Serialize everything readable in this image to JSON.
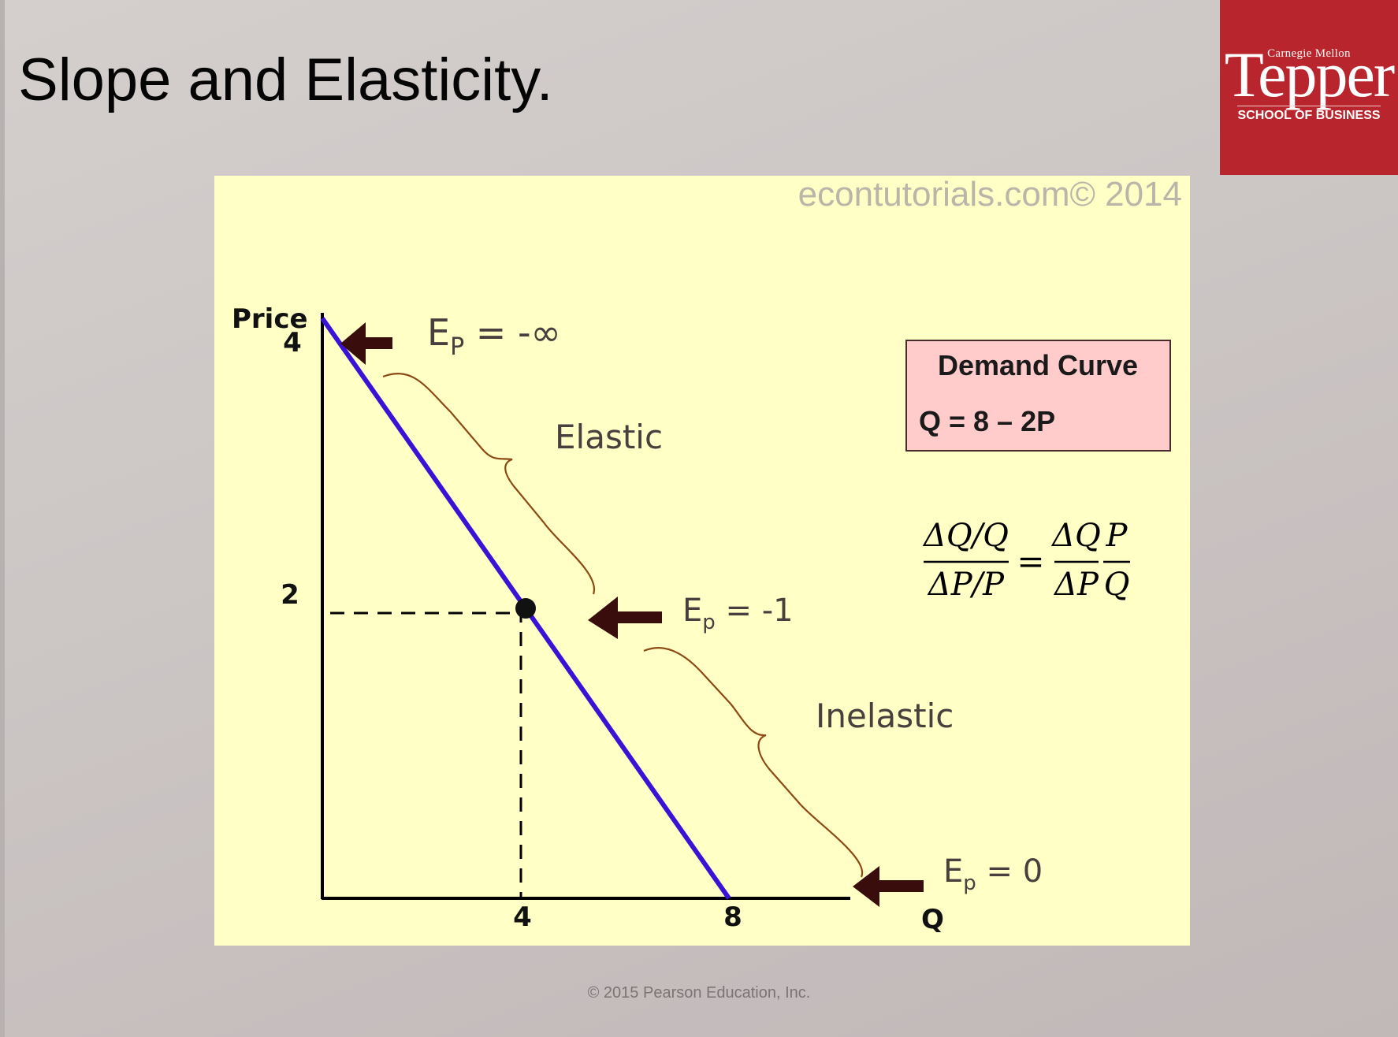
{
  "slide": {
    "title": "Slope and Elasticity.",
    "footer": "© 2015 Pearson Education, Inc."
  },
  "logo": {
    "top": "Carnegie Mellon",
    "main": "Tepper",
    "sub": "SCHOOL OF BUSINESS",
    "color": "#b8252c"
  },
  "chart_data": {
    "type": "line",
    "watermark": "econtutorials.com© 2014",
    "ylabel": "Price",
    "xlabel": "Q",
    "xlim": [
      0,
      8
    ],
    "ylim": [
      0,
      4
    ],
    "x_ticks": [
      4,
      8
    ],
    "y_ticks": [
      4,
      2
    ],
    "series": [
      {
        "points": [
          [
            0,
            4
          ],
          [
            8,
            0
          ]
        ],
        "color": "#3a12d6"
      }
    ],
    "marked_point": {
      "x": 4,
      "y": 2
    },
    "annotations": {
      "ep_top": {
        "lead": "E",
        "sub": "P",
        "rest": " = -∞"
      },
      "ep_mid": {
        "lead": "E",
        "sub": "p",
        "rest": " = -1"
      },
      "ep_bottom": {
        "lead": "E",
        "sub": "p",
        "rest": " = 0"
      },
      "elastic": "Elastic",
      "inelastic": "Inelastic"
    },
    "legend_box": {
      "title": "Demand Curve",
      "equation": "Q = 8 – 2P",
      "fill": "#ffcbcb"
    },
    "formula": {
      "lhs_num": "ΔQ/Q",
      "lhs_den": "ΔP/P",
      "eq": "=",
      "r1_num": "ΔQ",
      "r1_den": "ΔP",
      "r2_num": "P",
      "r2_den": "Q"
    }
  }
}
